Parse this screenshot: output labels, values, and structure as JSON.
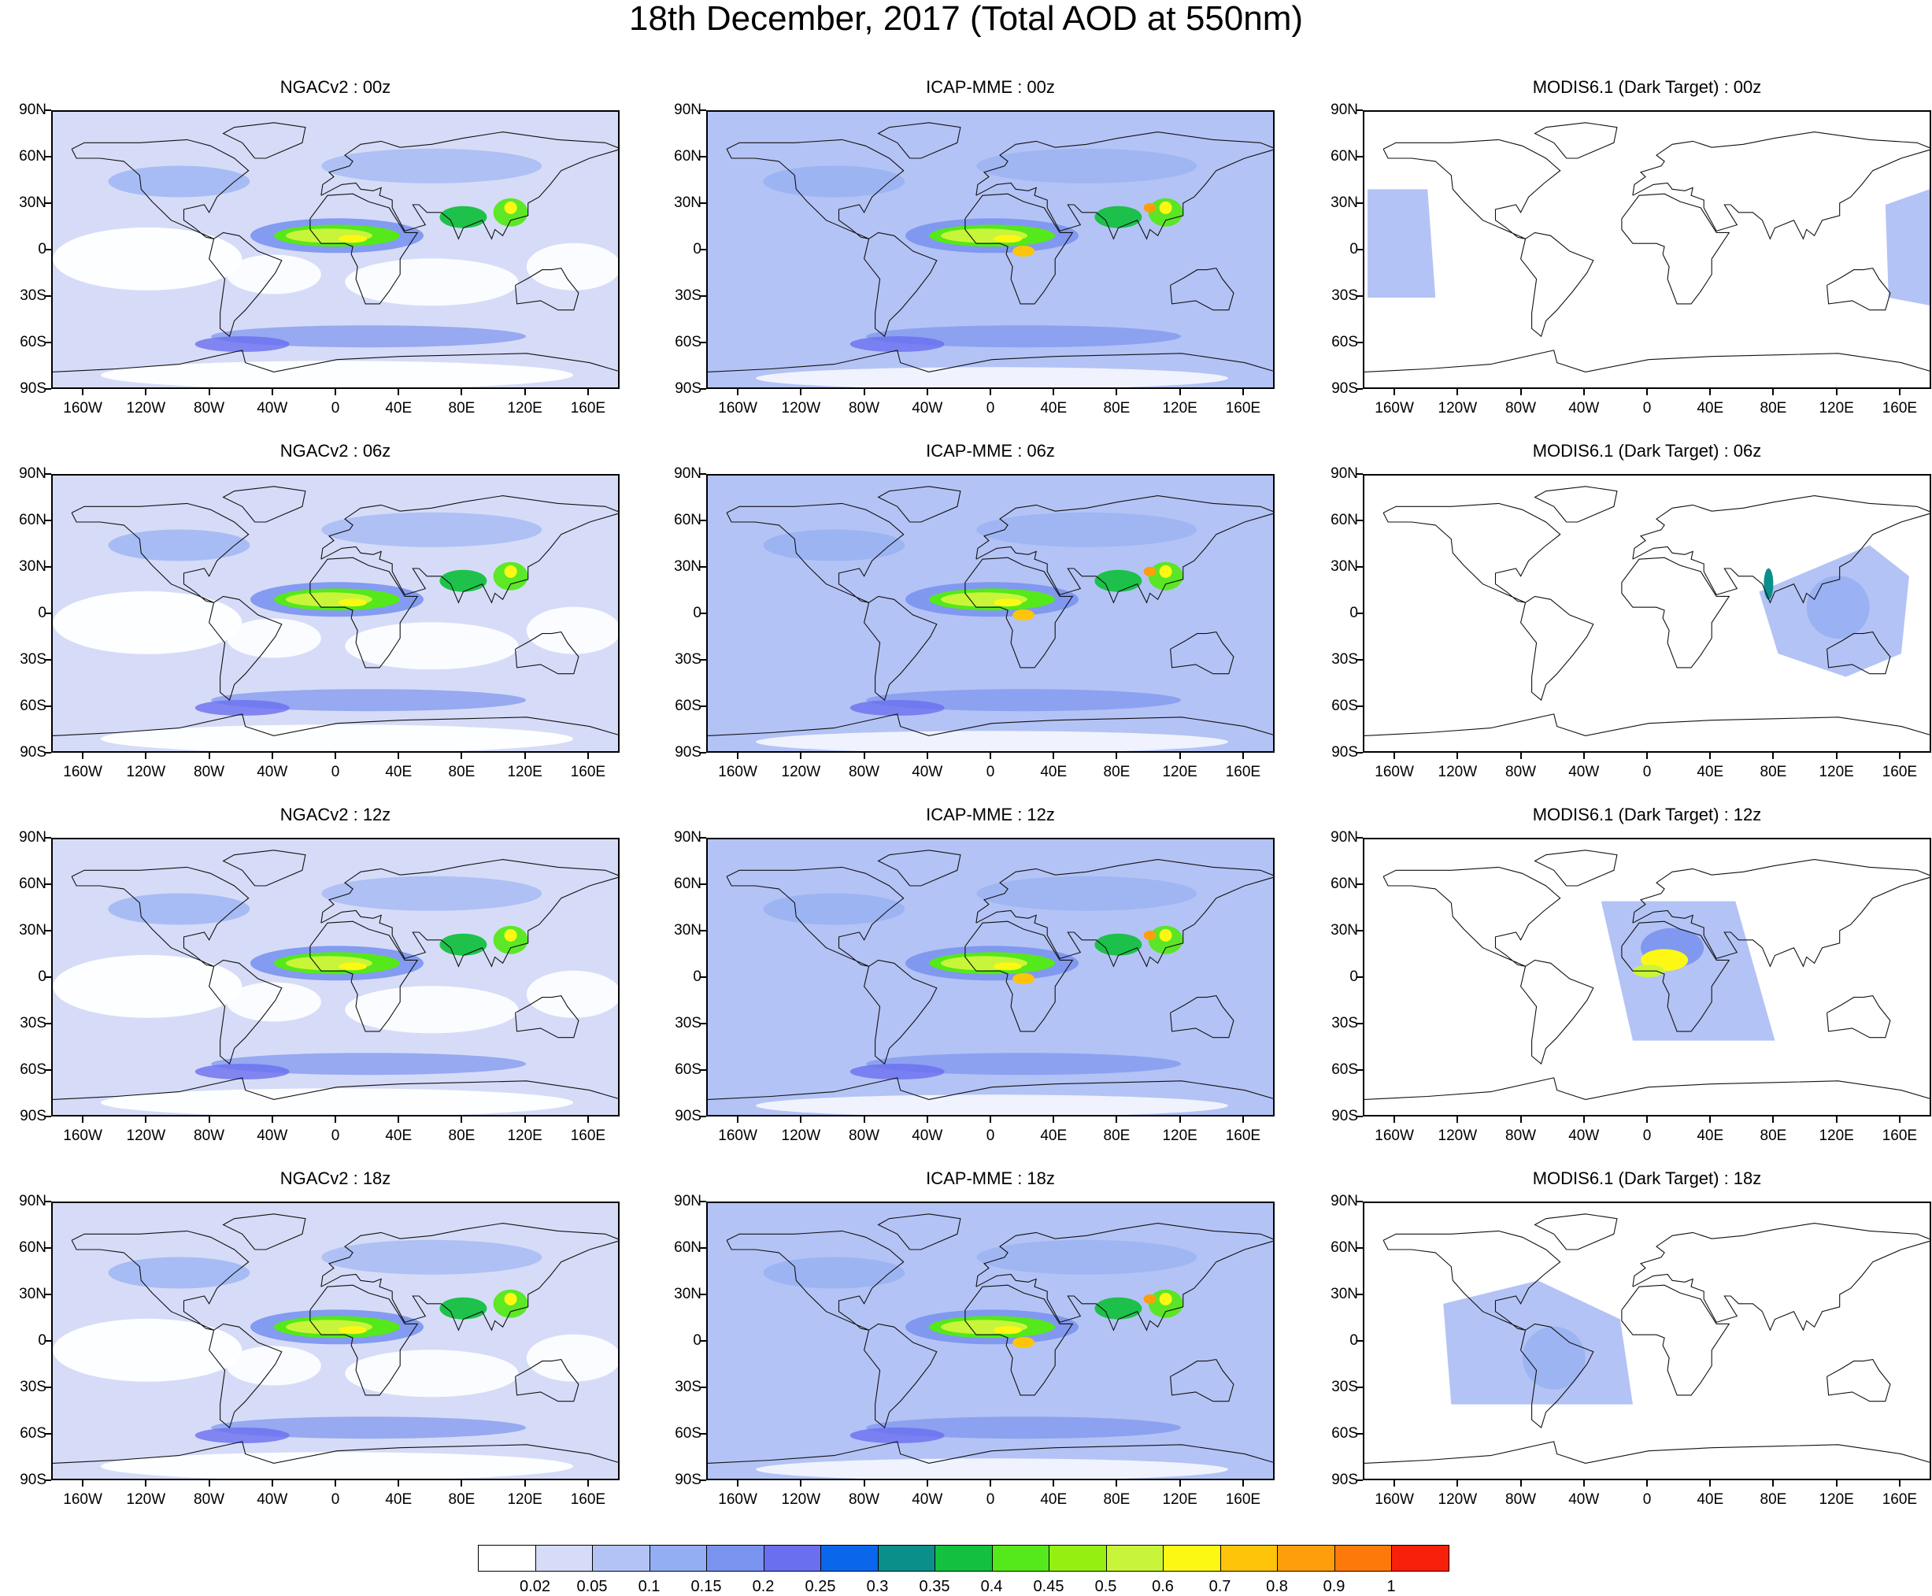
{
  "title": "18th December, 2017 (Total AOD at 550nm)",
  "axes": {
    "lat_labels": [
      "90N",
      "60N",
      "30N",
      "0",
      "30S",
      "60S",
      "90S"
    ],
    "lon_labels": [
      "160W",
      "120W",
      "80W",
      "40W",
      "0",
      "40E",
      "80E",
      "120E",
      "160E"
    ]
  },
  "panels": [
    {
      "title": "NGACv2 : 00z",
      "model": "NGACv2",
      "time": "00z"
    },
    {
      "title": "ICAP-MME : 00z",
      "model": "ICAP-MME",
      "time": "00z"
    },
    {
      "title": "MODIS6.1 (Dark Target) : 00z",
      "model": "MODIS6.1",
      "time": "00z"
    },
    {
      "title": "NGACv2 : 06z",
      "model": "NGACv2",
      "time": "06z"
    },
    {
      "title": "ICAP-MME : 06z",
      "model": "ICAP-MME",
      "time": "06z"
    },
    {
      "title": "MODIS6.1 (Dark Target) : 06z",
      "model": "MODIS6.1",
      "time": "06z"
    },
    {
      "title": "NGACv2 : 12z",
      "model": "NGACv2",
      "time": "12z"
    },
    {
      "title": "ICAP-MME : 12z",
      "model": "ICAP-MME",
      "time": "12z"
    },
    {
      "title": "MODIS6.1 (Dark Target) : 12z",
      "model": "MODIS6.1",
      "time": "12z"
    },
    {
      "title": "NGACv2 : 18z",
      "model": "NGACv2",
      "time": "18z"
    },
    {
      "title": "ICAP-MME : 18z",
      "model": "ICAP-MME",
      "time": "18z"
    },
    {
      "title": "MODIS6.1 (Dark Target) : 18z",
      "model": "MODIS6.1",
      "time": "18z"
    }
  ],
  "colorbar": {
    "labels": [
      "0.02",
      "0.05",
      "0.1",
      "0.15",
      "0.2",
      "0.25",
      "0.3",
      "0.35",
      "0.4",
      "0.45",
      "0.5",
      "0.6",
      "0.7",
      "0.8",
      "0.9",
      "1"
    ],
    "colors": [
      "#ffffff",
      "#d6dcf7",
      "#b4c3f5",
      "#93aef2",
      "#7a93ee",
      "#6a6ff0",
      "#0a67ec",
      "#0a8f8a",
      "#14c040",
      "#55e81a",
      "#95f012",
      "#c8f53a",
      "#fcf814",
      "#fdc40a",
      "#fd9e0a",
      "#fd7a0a",
      "#f8200a"
    ]
  }
}
